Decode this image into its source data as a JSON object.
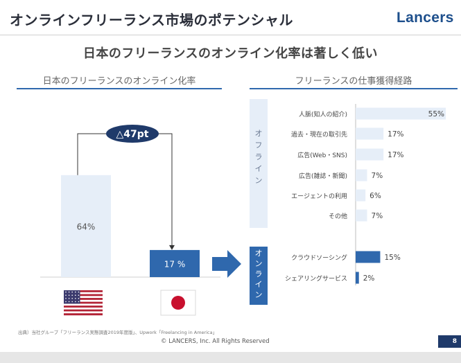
{
  "header": {
    "title": "オンラインフリーランス市場のポテンシャル",
    "brand": "Lancers"
  },
  "headline": "日本のフリーランスのオンライン化率は著しく低い",
  "left_section": {
    "title": "日本のフリーランスのオンライン化率",
    "difference_label": "△47pt",
    "flags": [
      "us-flag-icon",
      "japan-flag-icon"
    ]
  },
  "right_section": {
    "title": "フリーランスの仕事獲得経路",
    "offline_label": "オフライン",
    "online_label": "オンライン"
  },
  "footer": {
    "source": "出典）当社グループ「フリーランス実態調査2019年度版」、Upwork「Freelancing in America」",
    "copyright": "© LANCERS, Inc. All Rights Reserved",
    "page_number": "8"
  },
  "colors": {
    "primary_blue": "#2f68ad",
    "light_blue": "#e6eef8",
    "navy": "#1f3a6a"
  },
  "chart_data": [
    {
      "type": "bar",
      "categories": [
        "US",
        "Japan"
      ],
      "values": [
        64,
        17
      ],
      "value_labels": [
        "64%",
        "17 %"
      ],
      "ylim": [
        0,
        100
      ]
    },
    {
      "type": "bar",
      "orientation": "horizontal",
      "xlim": [
        0,
        55
      ],
      "groups": [
        {
          "group": "offline",
          "categories": [
            "人脈(知人の紹介)",
            "過去・現在の取引先",
            "広告(Web・SNS)",
            "広告(雑誌・新聞)",
            "エージェントの利用",
            "その他"
          ],
          "values": [
            55,
            17,
            17,
            7,
            6,
            7
          ],
          "value_labels": [
            "55%",
            "17%",
            "17%",
            "7%",
            "6%",
            "7%"
          ]
        },
        {
          "group": "online",
          "categories": [
            "クラウドソーシング",
            "シェアリングサービス"
          ],
          "values": [
            15,
            2
          ],
          "value_labels": [
            "15%",
            "2%"
          ]
        }
      ]
    }
  ]
}
